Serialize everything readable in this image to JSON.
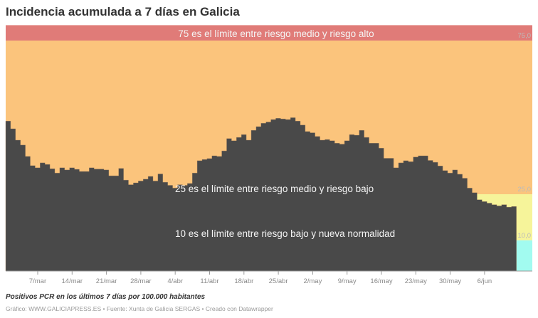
{
  "header": {
    "title": "Incidencia acumulada a 7 días en Galicia"
  },
  "footer": {
    "notes": "Positivos PCR en los últimos 7 días por 100.000 habitantes",
    "credit": "Gráfico: WWW.GALICIAPRESS.ES • Fuente: Xunta de Galicia SERGAS • Creado con Datawrapper"
  },
  "colors": {
    "bar": "#494949",
    "high": "#e07b78",
    "medium": "#fbc47c",
    "low": "#f6f49a",
    "normal": "#a2fbf0"
  },
  "chart_data": {
    "type": "area",
    "title": "Incidencia acumulada a 7 días en Galicia",
    "subtitle": "Positivos PCR en los últimos 7 días por 100.000 habitantes",
    "xlabel": "",
    "ylabel": "",
    "ylim": [
      0,
      80
    ],
    "grid": false,
    "x_start": "28/feb",
    "x_ticks": [
      "7/mar",
      "14/mar",
      "21/mar",
      "28/mar",
      "4/abr",
      "11/abr",
      "18/abr",
      "25/abr",
      "2/may",
      "9/may",
      "16/may",
      "23/may",
      "30/may",
      "6/jun"
    ],
    "thresholds": [
      {
        "value": 75,
        "label": "75,0",
        "annotation": "75 es el límite entre riesgo medio y riesgo alto"
      },
      {
        "value": 25,
        "label": "25,0",
        "annotation": "25 es el límite entre riesgo medio y riesgo bajo"
      },
      {
        "value": 10,
        "label": "10,0",
        "annotation": "10 es el límite entre riesgo bajo y nueva normalidad"
      }
    ],
    "values": [
      48.8,
      46.3,
      42.6,
      41.0,
      37.3,
      34.3,
      33.6,
      35.2,
      34.7,
      33.3,
      31.9,
      33.6,
      32.9,
      33.6,
      33.1,
      32.4,
      32.4,
      33.6,
      33.2,
      33.2,
      32.9,
      31.0,
      31.0,
      33.4,
      29.6,
      28.1,
      28.7,
      29.3,
      29.9,
      30.8,
      29.3,
      31.6,
      28.9,
      27.9,
      27.0,
      28.1,
      27.9,
      28.5,
      31.9,
      35.9,
      36.3,
      36.6,
      37.5,
      37.3,
      39.1,
      43.1,
      42.4,
      43.5,
      44.4,
      42.6,
      45.8,
      47.0,
      48.1,
      48.5,
      49.3,
      49.7,
      49.5,
      49.3,
      49.9,
      48.8,
      47.5,
      45.4,
      45.0,
      43.8,
      42.6,
      42.8,
      42.4,
      41.6,
      41.3,
      42.4,
      44.4,
      44.2,
      45.8,
      43.5,
      41.6,
      41.6,
      40.0,
      36.7,
      36.7,
      33.6,
      35.2,
      35.9,
      35.6,
      37.1,
      37.5,
      37.5,
      36.0,
      35.4,
      34.2,
      32.7,
      31.9,
      32.9,
      31.5,
      30.2,
      27.0,
      25.5,
      23.2,
      22.6,
      22.1,
      21.6,
      21.2,
      21.6,
      20.8,
      21.0
    ]
  }
}
